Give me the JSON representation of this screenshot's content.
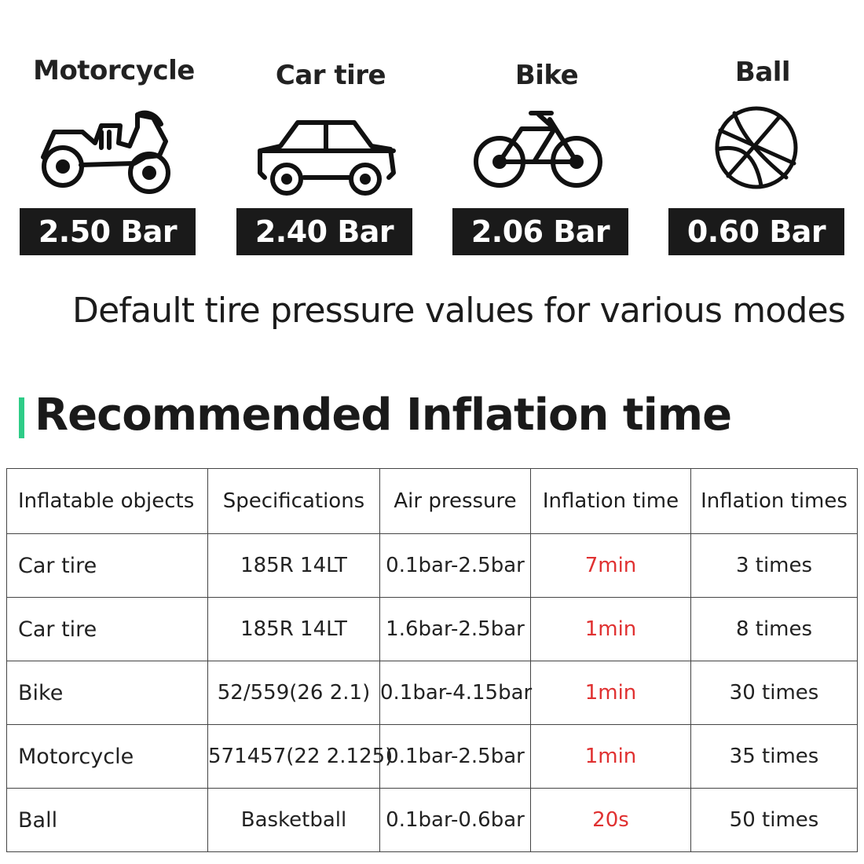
{
  "modes": [
    {
      "name": "Motorcycle",
      "pressure": "2.50 Bar",
      "icon": "motorcycle-icon"
    },
    {
      "name": "Car tire",
      "pressure": "2.40 Bar",
      "icon": "car-icon"
    },
    {
      "name": "Bike",
      "pressure": "2.06 Bar",
      "icon": "bicycle-icon"
    },
    {
      "name": "Ball",
      "pressure": "0.60 Bar",
      "icon": "basketball-icon"
    }
  ],
  "caption": "Default tire pressure values for various modes",
  "section_title": "Recommended Inflation time",
  "colors": {
    "accent_bar": "#2ecc87",
    "time_red": "#e03131",
    "badge_bg": "#1a1a1a"
  },
  "table": {
    "headers": [
      "Inflatable objects",
      "Specifications",
      "Air pressure",
      "Inflation time",
      "Inflation times"
    ],
    "rows": [
      [
        "Car tire",
        "185R 14LT",
        "0.1bar-2.5bar",
        "7min",
        "3 times"
      ],
      [
        "Car tire",
        "185R 14LT",
        "1.6bar-2.5bar",
        "1min",
        "8 times"
      ],
      [
        "Bike",
        "52/559(26 2.1)",
        "0.1bar-4.15bar",
        "1min",
        "30 times"
      ],
      [
        "Motorcycle",
        "571457(22 2.125)",
        "0.1bar-2.5bar",
        "1min",
        "35 times"
      ],
      [
        "Ball",
        "Basketball",
        "0.1bar-0.6bar",
        "20s",
        "50 times"
      ]
    ]
  }
}
